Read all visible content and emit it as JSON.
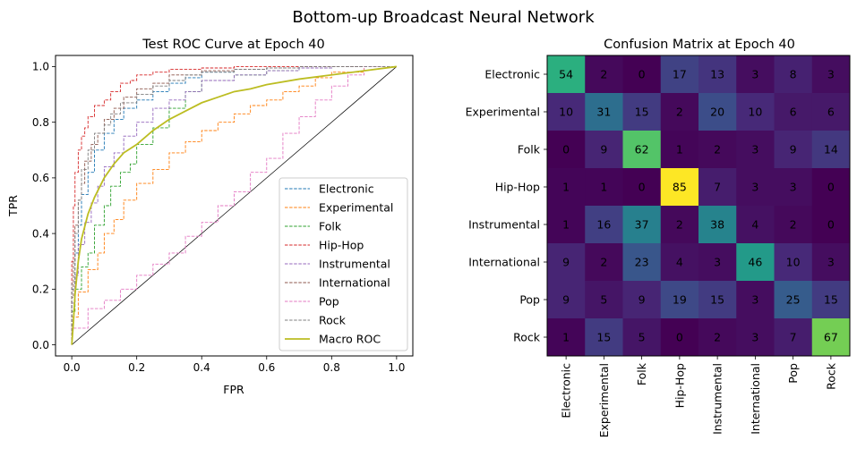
{
  "suptitle": "Bottom-up Broadcast Neural Network",
  "chart_data": [
    {
      "type": "line",
      "title": "Test ROC Curve at Epoch 40",
      "xlabel": "FPR",
      "ylabel": "TPR",
      "xlim": [
        -0.05,
        1.05
      ],
      "ylim": [
        -0.04,
        1.04
      ],
      "xticks": [
        0.0,
        0.2,
        0.4,
        0.6,
        0.8,
        1.0
      ],
      "yticks": [
        0.0,
        0.2,
        0.4,
        0.6,
        0.8,
        1.0
      ],
      "tick_labels_x": [
        "0.0",
        "0.2",
        "0.4",
        "0.6",
        "0.8",
        "1.0"
      ],
      "tick_labels_y": [
        "0.0",
        "0.2",
        "0.4",
        "0.6",
        "0.8",
        "1.0"
      ],
      "grid": false,
      "legend_position": "lower-right",
      "series": [
        {
          "name": "Electronic",
          "color": "#1f77b4",
          "style": "dashed",
          "x": [
            0,
            0.01,
            0.02,
            0.03,
            0.05,
            0.07,
            0.1,
            0.13,
            0.16,
            0.2,
            0.25,
            0.3,
            0.35,
            0.4,
            0.5,
            0.6,
            0.7,
            0.8,
            0.9,
            1.0
          ],
          "y": [
            0,
            0.2,
            0.33,
            0.43,
            0.54,
            0.62,
            0.7,
            0.76,
            0.81,
            0.85,
            0.88,
            0.91,
            0.94,
            0.96,
            0.98,
            0.99,
            0.995,
            1.0,
            1.0,
            1.0
          ]
        },
        {
          "name": "Experimental",
          "color": "#ff7f0e",
          "style": "dashed",
          "x": [
            0,
            0.02,
            0.05,
            0.08,
            0.1,
            0.13,
            0.16,
            0.2,
            0.25,
            0.3,
            0.35,
            0.4,
            0.45,
            0.5,
            0.55,
            0.6,
            0.65,
            0.7,
            0.75,
            0.8,
            0.9,
            1.0
          ],
          "y": [
            0,
            0.1,
            0.19,
            0.27,
            0.33,
            0.4,
            0.45,
            0.52,
            0.58,
            0.63,
            0.69,
            0.73,
            0.77,
            0.8,
            0.83,
            0.86,
            0.88,
            0.91,
            0.93,
            0.96,
            0.98,
            1.0
          ]
        },
        {
          "name": "Folk",
          "color": "#2ca02c",
          "style": "dashed",
          "x": [
            0,
            0.01,
            0.03,
            0.05,
            0.07,
            0.1,
            0.12,
            0.15,
            0.18,
            0.2,
            0.25,
            0.3,
            0.35,
            0.4,
            0.5,
            0.6,
            0.7,
            0.8,
            0.9,
            1.0
          ],
          "y": [
            0,
            0.12,
            0.2,
            0.28,
            0.33,
            0.43,
            0.5,
            0.57,
            0.62,
            0.65,
            0.72,
            0.78,
            0.85,
            0.91,
            0.95,
            0.97,
            0.985,
            0.995,
            1.0,
            1.0
          ]
        },
        {
          "name": "Hip-Hop",
          "color": "#d62728",
          "style": "dashed",
          "x": [
            0,
            0.005,
            0.01,
            0.02,
            0.03,
            0.04,
            0.05,
            0.07,
            0.1,
            0.12,
            0.15,
            0.18,
            0.2,
            0.25,
            0.3,
            0.4,
            0.5,
            0.6,
            0.7,
            0.8,
            1.0
          ],
          "y": [
            0,
            0.3,
            0.5,
            0.62,
            0.7,
            0.75,
            0.78,
            0.82,
            0.86,
            0.88,
            0.91,
            0.94,
            0.95,
            0.97,
            0.98,
            0.99,
            0.995,
            1.0,
            1.0,
            1.0,
            1.0
          ]
        },
        {
          "name": "Instrumental",
          "color": "#9467bd",
          "style": "dashed",
          "x": [
            0,
            0.01,
            0.02,
            0.04,
            0.06,
            0.08,
            0.1,
            0.13,
            0.16,
            0.2,
            0.25,
            0.3,
            0.35,
            0.4,
            0.5,
            0.6,
            0.7,
            0.8,
            0.9,
            1.0
          ],
          "y": [
            0,
            0.15,
            0.25,
            0.36,
            0.44,
            0.51,
            0.57,
            0.64,
            0.69,
            0.75,
            0.8,
            0.85,
            0.88,
            0.91,
            0.95,
            0.97,
            0.985,
            0.995,
            1.0,
            1.0
          ]
        },
        {
          "name": "International",
          "color": "#8c564b",
          "style": "dashed",
          "x": [
            0,
            0.005,
            0.01,
            0.02,
            0.03,
            0.04,
            0.06,
            0.08,
            0.1,
            0.13,
            0.16,
            0.2,
            0.25,
            0.3,
            0.4,
            0.5,
            0.6,
            0.7,
            0.8,
            1.0
          ],
          "y": [
            0,
            0.17,
            0.3,
            0.43,
            0.52,
            0.58,
            0.66,
            0.72,
            0.76,
            0.81,
            0.85,
            0.89,
            0.92,
            0.94,
            0.97,
            0.985,
            0.99,
            0.995,
            1.0,
            1.0
          ]
        },
        {
          "name": "Pop",
          "color": "#e377c2",
          "style": "dashed",
          "x": [
            0,
            0.05,
            0.1,
            0.15,
            0.2,
            0.25,
            0.3,
            0.35,
            0.4,
            0.45,
            0.5,
            0.55,
            0.6,
            0.65,
            0.7,
            0.75,
            0.8,
            0.85,
            0.9,
            1.0
          ],
          "y": [
            0,
            0.06,
            0.13,
            0.16,
            0.2,
            0.25,
            0.29,
            0.33,
            0.39,
            0.44,
            0.5,
            0.55,
            0.62,
            0.67,
            0.76,
            0.82,
            0.88,
            0.93,
            0.97,
            1.0
          ]
        },
        {
          "name": "Rock",
          "color": "#7f7f7f",
          "style": "dashed",
          "x": [
            0,
            0.01,
            0.02,
            0.03,
            0.05,
            0.07,
            0.1,
            0.12,
            0.15,
            0.2,
            0.25,
            0.3,
            0.35,
            0.4,
            0.5,
            0.6,
            0.7,
            0.8,
            0.9,
            1.0
          ],
          "y": [
            0,
            0.22,
            0.4,
            0.52,
            0.63,
            0.7,
            0.76,
            0.79,
            0.83,
            0.87,
            0.9,
            0.93,
            0.95,
            0.97,
            0.98,
            0.99,
            0.995,
            1.0,
            1.0,
            1.0
          ]
        },
        {
          "name": "Macro ROC",
          "color": "#bcbd22",
          "style": "solid",
          "x": [
            0,
            0.005,
            0.01,
            0.02,
            0.03,
            0.05,
            0.07,
            0.1,
            0.13,
            0.16,
            0.2,
            0.25,
            0.3,
            0.35,
            0.4,
            0.45,
            0.5,
            0.55,
            0.6,
            0.7,
            0.8,
            0.9,
            1.0
          ],
          "y": [
            0,
            0.08,
            0.18,
            0.3,
            0.38,
            0.47,
            0.53,
            0.6,
            0.65,
            0.69,
            0.72,
            0.77,
            0.81,
            0.84,
            0.87,
            0.89,
            0.91,
            0.92,
            0.935,
            0.955,
            0.97,
            0.985,
            1.0
          ]
        }
      ],
      "reference_line": {
        "x": [
          0,
          1
        ],
        "y": [
          0,
          1
        ],
        "color": "#000000"
      }
    },
    {
      "type": "heatmap",
      "title": "Confusion Matrix at Epoch 40",
      "colormap": "viridis",
      "vmin": 0,
      "vmax": 85,
      "row_labels": [
        "Electronic",
        "Experimental",
        "Folk",
        "Hip-Hop",
        "Instrumental",
        "International",
        "Pop",
        "Rock"
      ],
      "col_labels": [
        "Electronic",
        "Experimental",
        "Folk",
        "Hip-Hop",
        "Instrumental",
        "International",
        "Pop",
        "Rock"
      ],
      "matrix": [
        [
          54,
          2,
          0,
          17,
          13,
          3,
          8,
          3
        ],
        [
          10,
          31,
          15,
          2,
          20,
          10,
          6,
          6
        ],
        [
          0,
          9,
          62,
          1,
          2,
          3,
          9,
          14
        ],
        [
          1,
          1,
          0,
          85,
          7,
          3,
          3,
          0
        ],
        [
          1,
          16,
          37,
          2,
          38,
          4,
          2,
          0
        ],
        [
          9,
          2,
          23,
          4,
          3,
          46,
          10,
          3
        ],
        [
          9,
          5,
          9,
          19,
          15,
          3,
          25,
          15
        ],
        [
          1,
          15,
          5,
          0,
          2,
          3,
          7,
          67
        ]
      ]
    }
  ]
}
